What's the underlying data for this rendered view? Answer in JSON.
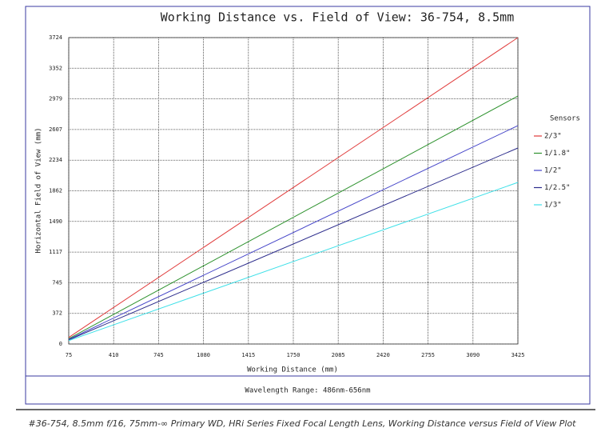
{
  "chart_data": {
    "type": "line",
    "title": "Working Distance vs. Field of View: 36-754, 8.5mm",
    "x_label": "Working Distance (mm)",
    "y_label": "Horizontal Field of View (mm)",
    "x": [
      75,
      3425
    ],
    "series": [
      {
        "name": "2/3\"",
        "color": "#e03a3a",
        "values": [
          80,
          3724
        ]
      },
      {
        "name": "1/1.8\"",
        "color": "#2e922e",
        "values": [
          65,
          3014
        ]
      },
      {
        "name": "1/2\"",
        "color": "#4444c8",
        "values": [
          56,
          2654
        ]
      },
      {
        "name": "1/2.5\"",
        "color": "#2c2c8c",
        "values": [
          50,
          2382
        ]
      },
      {
        "name": "1/3\"",
        "color": "#3ee0e8",
        "values": [
          41,
          1964
        ]
      }
    ],
    "xlim": [
      75,
      3425
    ],
    "ylim": [
      0,
      3724
    ],
    "xticks": [
      75,
      410,
      745,
      1080,
      1415,
      1750,
      2085,
      2420,
      2755,
      3090,
      3425
    ],
    "yticks": [
      0,
      372,
      745,
      1117,
      1490,
      1862,
      2234,
      2607,
      2979,
      3352,
      3724
    ],
    "grid": true,
    "legend_title": "Sensors",
    "legend_position": "right",
    "note": "Wavelength Range: 486nm-656nm"
  },
  "caption": "#36-754, 8.5mm f/16, 75mm-∞ Primary WD, HRi Series Fixed Focal Length Lens, Working Distance versus Field of View Plot"
}
